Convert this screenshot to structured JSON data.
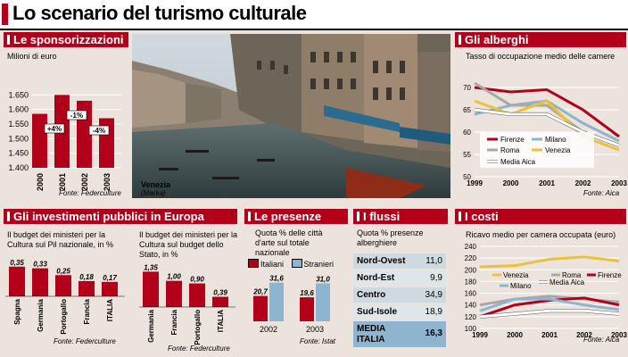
{
  "title": "Lo scenario del turismo culturale",
  "colors": {
    "red": "#b3001a",
    "blue": "#8fb4cf",
    "grey": "#a8a8a8",
    "yellow": "#e8c23a",
    "bg": "#ece4dc"
  },
  "sponsor": {
    "header": "Le sponsorizzazioni",
    "unit": "Milioni di euro",
    "source": "Fonte: Federculture",
    "chart_data": {
      "type": "bar",
      "categories": [
        "2000",
        "2001",
        "2002",
        "2003"
      ],
      "values": [
        1585,
        1650,
        1630,
        1570
      ],
      "ylim": [
        1400,
        1700
      ],
      "yticks": [
        "1.650",
        "1.600",
        "1.550",
        "1.500",
        "1.450",
        "1.400"
      ],
      "changes": [
        "+4%",
        "-1%",
        "-4%"
      ],
      "ylabel": "Milioni di euro"
    }
  },
  "alberghi": {
    "header": "Gli alberghi",
    "subtitle": "Tasso di occupazione medio delle camere",
    "source": "Fonte: Aica",
    "chart_data": {
      "type": "line",
      "x": [
        "1999",
        "2000",
        "2001",
        "2002",
        "2003"
      ],
      "yticks": [
        "70",
        "65",
        "60",
        "55",
        "50"
      ],
      "ylim": [
        50,
        72
      ],
      "series": [
        {
          "name": "Firenze",
          "color": "#b3001a",
          "values": [
            70,
            69,
            69.5,
            65,
            59
          ]
        },
        {
          "name": "Milano",
          "color": "#8fb4cf",
          "values": [
            64,
            66,
            67,
            62,
            58
          ]
        },
        {
          "name": "Roma",
          "color": "#a8a8a8",
          "values": [
            71,
            66,
            66,
            60,
            57
          ]
        },
        {
          "name": "Venezia",
          "color": "#e8c23a",
          "values": [
            67,
            64,
            67,
            59,
            56
          ]
        },
        {
          "name": "Media Aica",
          "color": "#ffffff",
          "values": [
            65,
            64,
            64,
            60,
            57
          ]
        }
      ]
    }
  },
  "investimenti": {
    "header": "Gli investimenti pubblici in Europa",
    "left": {
      "caption": "Il budget dei ministeri per la Cultura sul Pil nazionale, in %",
      "source": "Fonte: Federculture",
      "chart_data": {
        "type": "bar",
        "categories": [
          "Spagna",
          "Germania",
          "Portogallo",
          "Francia",
          "ITALIA"
        ],
        "values": [
          0.35,
          0.33,
          0.25,
          0.18,
          0.17
        ],
        "labels": [
          "0,35",
          "0,33",
          "0,25",
          "0,18",
          "0,17"
        ],
        "ylim": [
          0,
          0.4
        ]
      }
    },
    "right": {
      "caption": "Il budget dei ministeri per la Cultura sul budget dello Stato, in %",
      "source": "Fonte: Federculture",
      "chart_data": {
        "type": "bar",
        "categories": [
          "Germania",
          "Francia",
          "Portogallo",
          "ITALIA"
        ],
        "values": [
          1.35,
          1.0,
          0.9,
          0.39
        ],
        "labels": [
          "1,35",
          "1,00",
          "0,90",
          "0,39"
        ],
        "ylim": [
          0,
          1.5
        ]
      }
    }
  },
  "presenze": {
    "header": "Le presenze",
    "caption": "Quota % delle città d'arte sul totale nazionale",
    "source": "Fonte: Istat",
    "chart_data": {
      "type": "bar",
      "categories": [
        "2002",
        "2003"
      ],
      "series": [
        {
          "name": "Italiani",
          "color": "#b3001a",
          "values": [
            20.7,
            19.6
          ]
        },
        {
          "name": "Stranieri",
          "color": "#8fb4cf",
          "values": [
            31.6,
            31.0
          ]
        }
      ],
      "labels": [
        [
          "20,7",
          "31,6"
        ],
        [
          "19,6",
          "31,0"
        ]
      ],
      "ylim": [
        0,
        35
      ]
    }
  },
  "flussi": {
    "header": "I flussi",
    "caption": "Quota % presenze alberghiere",
    "chart_data": {
      "type": "table",
      "rows": [
        {
          "name": "Nord-Ovest",
          "value": "11,0"
        },
        {
          "name": "Nord-Est",
          "value": "9,9"
        },
        {
          "name": "Centro",
          "value": "34,9"
        },
        {
          "name": "Sud-Isole",
          "value": "18,9"
        },
        {
          "name": "MEDIA ITALIA",
          "value": "16,3"
        }
      ]
    }
  },
  "costi": {
    "header": "I costi",
    "subtitle": "Ricavo medio per camera occupata (euro)",
    "source": "Fonte: Aica",
    "chart_data": {
      "type": "line",
      "x": [
        "1999",
        "2000",
        "2001",
        "2002",
        "2003"
      ],
      "yticks": [
        "240",
        "220",
        "200",
        "180",
        "160",
        "140",
        "120",
        "100"
      ],
      "ylim": [
        100,
        240
      ],
      "series": [
        {
          "name": "Venezia",
          "color": "#e8c23a",
          "values": [
            205,
            207,
            218,
            222,
            215
          ]
        },
        {
          "name": "Roma",
          "color": "#a8a8a8",
          "values": [
            140,
            150,
            155,
            150,
            145
          ]
        },
        {
          "name": "Firenze",
          "color": "#b3001a",
          "values": [
            120,
            140,
            148,
            152,
            140
          ]
        },
        {
          "name": "Milano",
          "color": "#8fb4cf",
          "values": [
            130,
            150,
            150,
            140,
            132
          ]
        },
        {
          "name": "Media Aica",
          "color": "#ffffff",
          "values": [
            120,
            125,
            130,
            130,
            125
          ]
        }
      ]
    }
  },
  "photo": {
    "caption": "Venezia",
    "credit": "(Marka)"
  }
}
